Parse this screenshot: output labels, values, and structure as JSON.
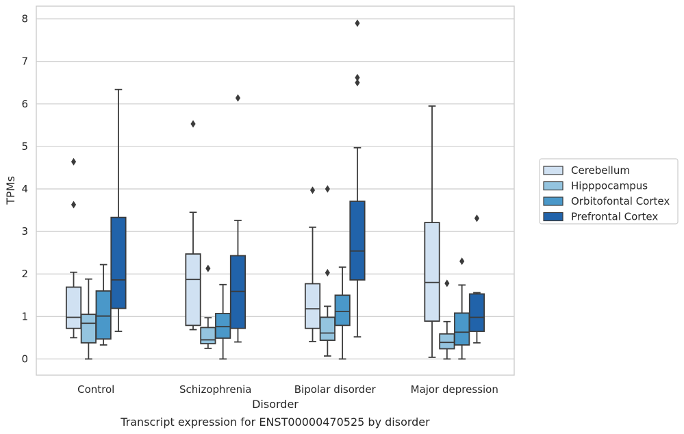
{
  "caption": "Transcript expression for ENST00000470525 by disorder",
  "chart_data": {
    "type": "box",
    "xlabel": "Disorder",
    "ylabel": "TPMs",
    "ylim": [
      -0.38,
      8.3
    ],
    "yticks": [
      0,
      1,
      2,
      3,
      4,
      5,
      6,
      7,
      8
    ],
    "grid": "horizontal",
    "legend_position": "right",
    "categories": [
      "Control",
      "Schizophrenia",
      "Bipolar disorder",
      "Major depression"
    ],
    "series": [
      {
        "name": "Cerebellum",
        "color": "#d0e1f2",
        "boxes": [
          {
            "whislo": 0.5,
            "q1": 0.72,
            "med": 0.98,
            "q3": 1.69,
            "whishi": 2.04,
            "fliers": [
              3.63,
              4.64
            ]
          },
          {
            "whislo": 0.69,
            "q1": 0.79,
            "med": 1.87,
            "q3": 2.47,
            "whishi": 3.45,
            "fliers": [
              5.53
            ]
          },
          {
            "whislo": 0.41,
            "q1": 0.72,
            "med": 1.18,
            "q3": 1.77,
            "whishi": 3.1,
            "fliers": [
              3.97
            ]
          },
          {
            "whislo": 0.04,
            "q1": 0.89,
            "med": 1.8,
            "q3": 3.21,
            "whishi": 5.95,
            "fliers": []
          }
        ]
      },
      {
        "name": "Hipppocampus",
        "color": "#94c4df",
        "boxes": [
          {
            "whislo": 0.0,
            "q1": 0.38,
            "med": 0.84,
            "q3": 1.05,
            "whishi": 1.88,
            "fliers": []
          },
          {
            "whislo": 0.25,
            "q1": 0.36,
            "med": 0.45,
            "q3": 0.74,
            "whishi": 0.97,
            "fliers": [
              2.13
            ]
          },
          {
            "whislo": 0.07,
            "q1": 0.44,
            "med": 0.61,
            "q3": 0.98,
            "whishi": 1.24,
            "fliers": [
              2.03,
              4.0
            ]
          },
          {
            "whislo": 0.0,
            "q1": 0.24,
            "med": 0.39,
            "q3": 0.59,
            "whishi": 0.88,
            "fliers": [
              1.78
            ]
          }
        ]
      },
      {
        "name": "Orbitofontal Cortex",
        "color": "#4a98c9",
        "boxes": [
          {
            "whislo": 0.33,
            "q1": 0.47,
            "med": 1.01,
            "q3": 1.6,
            "whishi": 2.22,
            "fliers": []
          },
          {
            "whislo": 0.0,
            "q1": 0.49,
            "med": 0.76,
            "q3": 1.07,
            "whishi": 1.75,
            "fliers": []
          },
          {
            "whislo": 0.0,
            "q1": 0.79,
            "med": 1.12,
            "q3": 1.5,
            "whishi": 2.16,
            "fliers": []
          },
          {
            "whislo": 0.0,
            "q1": 0.33,
            "med": 0.63,
            "q3": 1.08,
            "whishi": 1.74,
            "fliers": [
              2.3
            ]
          }
        ]
      },
      {
        "name": "Prefrontal Cortex",
        "color": "#2163aa",
        "boxes": [
          {
            "whislo": 0.65,
            "q1": 1.19,
            "med": 1.86,
            "q3": 3.33,
            "whishi": 6.34,
            "fliers": []
          },
          {
            "whislo": 0.4,
            "q1": 0.72,
            "med": 1.59,
            "q3": 2.43,
            "whishi": 3.26,
            "fliers": [
              6.14
            ]
          },
          {
            "whislo": 0.52,
            "q1": 1.86,
            "med": 2.54,
            "q3": 3.71,
            "whishi": 4.97,
            "fliers": [
              6.5,
              6.62,
              7.9
            ]
          },
          {
            "whislo": 0.38,
            "q1": 0.65,
            "med": 0.98,
            "q3": 1.53,
            "whishi": 1.56,
            "fliers": [
              3.31
            ]
          }
        ]
      }
    ]
  }
}
